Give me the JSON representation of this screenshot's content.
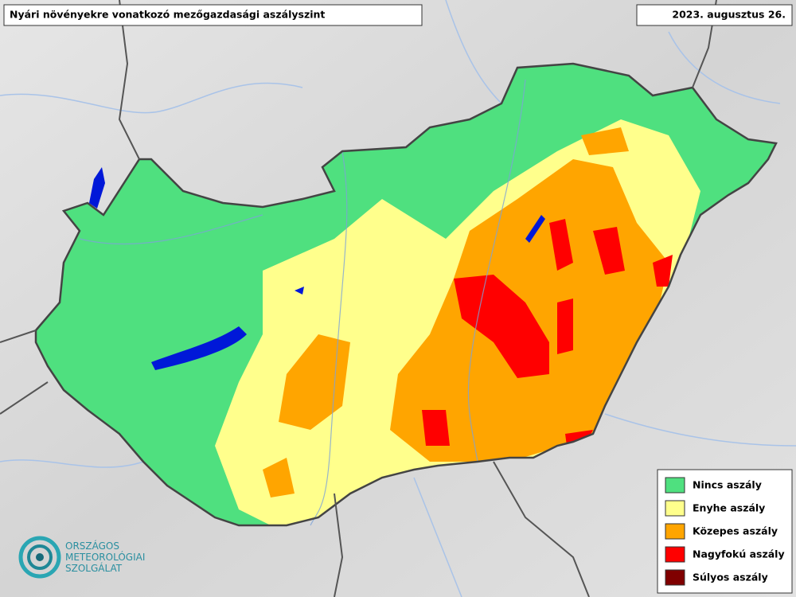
{
  "header": {
    "title": "Nyári növényekre vonatkozó mezőgazdasági aszályszint",
    "date": "2023. augusztus 26."
  },
  "legend": [
    {
      "label": "Nincs aszály",
      "color": "#4fe07f"
    },
    {
      "label": "Enyhe aszály",
      "color": "#ffff8c"
    },
    {
      "label": "Közepes aszály",
      "color": "#ffa500"
    },
    {
      "label": "Nagyfokú aszály",
      "color": "#ff0000"
    },
    {
      "label": "Súlyos aszály",
      "color": "#800000"
    }
  ],
  "logo": {
    "lines": [
      "ORSZÁGOS",
      "METEOROLÓGIAI",
      "SZOLGÁLAT"
    ]
  }
}
